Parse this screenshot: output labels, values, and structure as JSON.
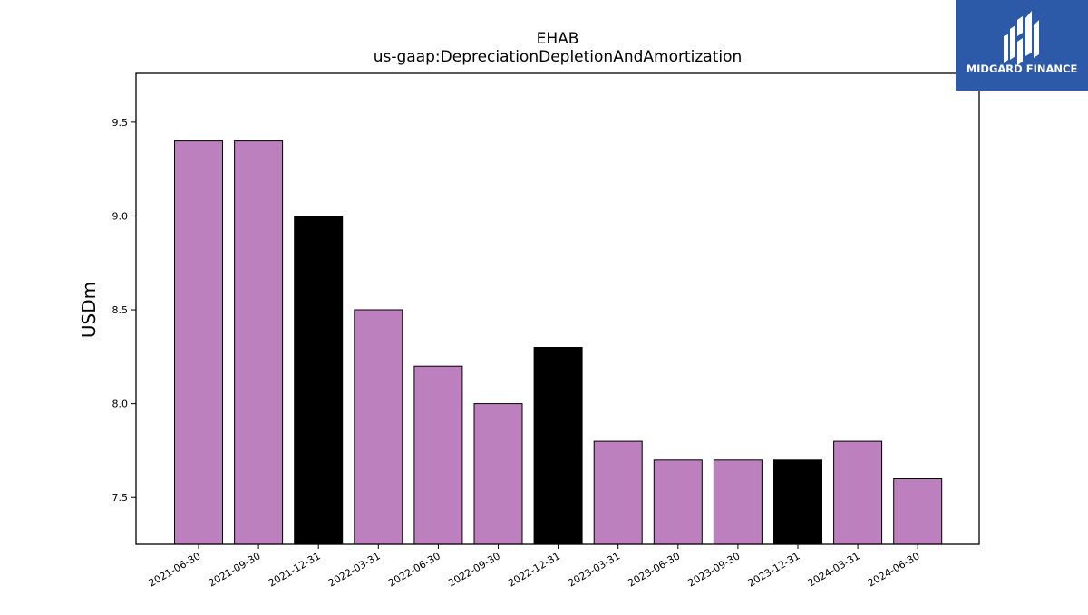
{
  "chart_data": {
    "type": "bar",
    "title": "EHAB",
    "subtitle": "us-gaap:DepreciationDepletionAndAmortization",
    "xlabel": "",
    "ylabel": "USDm",
    "ylim": [
      7.25,
      9.76
    ],
    "yticks": [
      "7.5",
      "8.0",
      "8.5",
      "9.0",
      "9.5"
    ],
    "categories": [
      "2021-06-30",
      "2021-09-30",
      "2021-12-31",
      "2022-03-31",
      "2022-06-30",
      "2022-09-30",
      "2022-12-31",
      "2023-03-31",
      "2023-06-30",
      "2023-09-30",
      "2023-12-31",
      "2024-03-31",
      "2024-06-30"
    ],
    "values": [
      9.4,
      9.4,
      9.0,
      8.5,
      8.2,
      8.0,
      8.3,
      7.8,
      7.7,
      7.7,
      7.7,
      7.8,
      7.6
    ],
    "bar_colors": [
      "#bb80bd",
      "#bb80bd",
      "#000000",
      "#bb80bd",
      "#bb80bd",
      "#bb80bd",
      "#000000",
      "#bb80bd",
      "#bb80bd",
      "#bb80bd",
      "#000000",
      "#bb80bd",
      "#bb80bd"
    ],
    "grid": false
  },
  "logo": {
    "text": "MIDGARD FINANCE",
    "background": "#2c5aa9",
    "text_color": "#ffffff",
    "icon": "midgard-logo-icon"
  }
}
